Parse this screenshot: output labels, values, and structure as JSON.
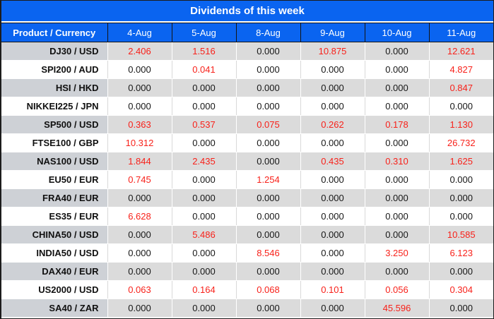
{
  "title": "Dividends of this week",
  "colors": {
    "accent_blue": "#0a64f0",
    "positive_red": "#f8211a",
    "row_gray_product": "#ced1d6",
    "row_gray_data": "#dbdbdb",
    "text_dark": "#161616"
  },
  "table": {
    "product_header": "Product / Currency",
    "date_headers": [
      "4-Aug",
      "5-Aug",
      "8-Aug",
      "9-Aug",
      "10-Aug",
      "11-Aug"
    ],
    "rows": [
      {
        "product": "DJ30 / USD",
        "values": [
          "2.406",
          "1.516",
          "0.000",
          "10.875",
          "0.000",
          "12.621"
        ]
      },
      {
        "product": "SPI200 / AUD",
        "values": [
          "0.000",
          "0.041",
          "0.000",
          "0.000",
          "0.000",
          "4.827"
        ]
      },
      {
        "product": "HSI / HKD",
        "values": [
          "0.000",
          "0.000",
          "0.000",
          "0.000",
          "0.000",
          "0.847"
        ]
      },
      {
        "product": "NIKKEI225 / JPN",
        "values": [
          "0.000",
          "0.000",
          "0.000",
          "0.000",
          "0.000",
          "0.000"
        ]
      },
      {
        "product": "SP500 / USD",
        "values": [
          "0.363",
          "0.537",
          "0.075",
          "0.262",
          "0.178",
          "1.130"
        ]
      },
      {
        "product": "FTSE100 / GBP",
        "values": [
          "10.312",
          "0.000",
          "0.000",
          "0.000",
          "0.000",
          "26.732"
        ]
      },
      {
        "product": "NAS100 / USD",
        "values": [
          "1.844",
          "2.435",
          "0.000",
          "0.435",
          "0.310",
          "1.625"
        ]
      },
      {
        "product": "EU50 / EUR",
        "values": [
          "0.745",
          "0.000",
          "1.254",
          "0.000",
          "0.000",
          "0.000"
        ]
      },
      {
        "product": "FRA40 / EUR",
        "values": [
          "0.000",
          "0.000",
          "0.000",
          "0.000",
          "0.000",
          "0.000"
        ]
      },
      {
        "product": "ES35 / EUR",
        "values": [
          "6.628",
          "0.000",
          "0.000",
          "0.000",
          "0.000",
          "0.000"
        ]
      },
      {
        "product": "CHINA50 / USD",
        "values": [
          "0.000",
          "5.486",
          "0.000",
          "0.000",
          "0.000",
          "10.585"
        ]
      },
      {
        "product": "INDIA50 / USD",
        "values": [
          "0.000",
          "0.000",
          "8.546",
          "0.000",
          "3.250",
          "6.123"
        ]
      },
      {
        "product": "DAX40 / EUR",
        "values": [
          "0.000",
          "0.000",
          "0.000",
          "0.000",
          "0.000",
          "0.000"
        ]
      },
      {
        "product": "US2000 / USD",
        "values": [
          "0.063",
          "0.164",
          "0.068",
          "0.101",
          "0.056",
          "0.304"
        ]
      },
      {
        "product": "SA40 / ZAR",
        "values": [
          "0.000",
          "0.000",
          "0.000",
          "0.000",
          "45.596",
          "0.000"
        ]
      }
    ]
  },
  "chart_data": {
    "type": "table",
    "title": "Dividends of this week",
    "columns": [
      "Product / Currency",
      "4-Aug",
      "5-Aug",
      "8-Aug",
      "9-Aug",
      "10-Aug",
      "11-Aug"
    ],
    "rows": [
      [
        "DJ30 / USD",
        2.406,
        1.516,
        0.0,
        10.875,
        0.0,
        12.621
      ],
      [
        "SPI200 / AUD",
        0.0,
        0.041,
        0.0,
        0.0,
        0.0,
        4.827
      ],
      [
        "HSI / HKD",
        0.0,
        0.0,
        0.0,
        0.0,
        0.0,
        0.847
      ],
      [
        "NIKKEI225 / JPN",
        0.0,
        0.0,
        0.0,
        0.0,
        0.0,
        0.0
      ],
      [
        "SP500 / USD",
        0.363,
        0.537,
        0.075,
        0.262,
        0.178,
        1.13
      ],
      [
        "FTSE100 / GBP",
        10.312,
        0.0,
        0.0,
        0.0,
        0.0,
        26.732
      ],
      [
        "NAS100 / USD",
        1.844,
        2.435,
        0.0,
        0.435,
        0.31,
        1.625
      ],
      [
        "EU50 / EUR",
        0.745,
        0.0,
        1.254,
        0.0,
        0.0,
        0.0
      ],
      [
        "FRA40 / EUR",
        0.0,
        0.0,
        0.0,
        0.0,
        0.0,
        0.0
      ],
      [
        "ES35 / EUR",
        6.628,
        0.0,
        0.0,
        0.0,
        0.0,
        0.0
      ],
      [
        "CHINA50 / USD",
        0.0,
        5.486,
        0.0,
        0.0,
        0.0,
        10.585
      ],
      [
        "INDIA50 / USD",
        0.0,
        0.0,
        8.546,
        0.0,
        3.25,
        6.123
      ],
      [
        "DAX40 / EUR",
        0.0,
        0.0,
        0.0,
        0.0,
        0.0,
        0.0
      ],
      [
        "US2000 / USD",
        0.063,
        0.164,
        0.068,
        0.101,
        0.056,
        0.304
      ],
      [
        "SA40 / ZAR",
        0.0,
        0.0,
        0.0,
        0.0,
        45.596,
        0.0
      ]
    ],
    "style_note": "non-zero values shown in red, zero values in black"
  }
}
